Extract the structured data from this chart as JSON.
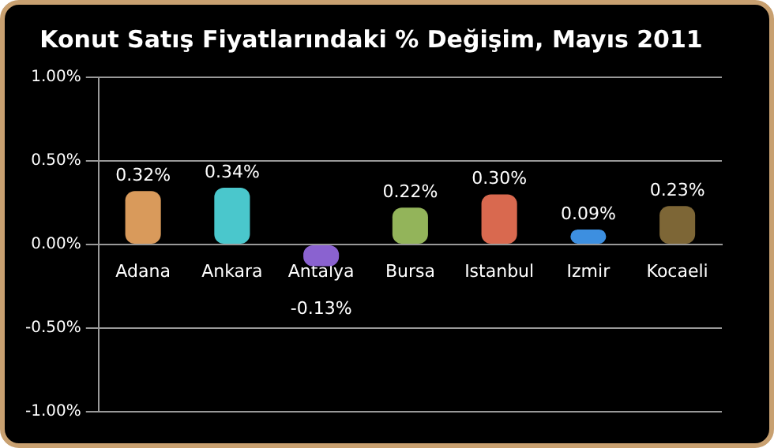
{
  "chart_data": {
    "type": "bar",
    "title": "Konut Satış Fiyatlarındaki % Değişim, Mayıs 2011",
    "categories": [
      "Adana",
      "Ankara",
      "Antalya",
      "Bursa",
      "Istanbul",
      "Izmir",
      "Kocaeli"
    ],
    "values": [
      0.32,
      0.34,
      -0.13,
      0.22,
      0.3,
      0.09,
      0.23
    ],
    "colors": [
      "#d99a5b",
      "#4ac7cc",
      "#8a62d0",
      "#93b45a",
      "#d9694f",
      "#3d8fe0",
      "#7d6636"
    ],
    "value_labels": [
      "0.32%",
      "0.34%",
      "-0.13%",
      "0.22%",
      "0.30%",
      "0.09%",
      "0.23%"
    ],
    "ylim": [
      -1,
      1
    ],
    "yticks": [
      {
        "value": -1,
        "label": "-1.00%"
      },
      {
        "value": -0.5,
        "label": "-0.50%"
      },
      {
        "value": 0,
        "label": "0.00%"
      },
      {
        "value": 0.5,
        "label": "0.50%"
      },
      {
        "value": 1,
        "label": "1.00%"
      }
    ],
    "grid": "y",
    "legend": false
  }
}
